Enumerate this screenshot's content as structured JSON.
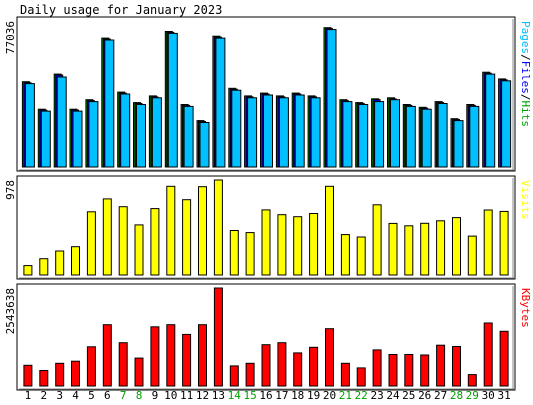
{
  "chart_data": {
    "type": "bar",
    "title": "Daily usage for January 2023",
    "categories": [
      "1",
      "2",
      "3",
      "4",
      "5",
      "6",
      "7",
      "8",
      "9",
      "10",
      "11",
      "12",
      "13",
      "14",
      "15",
      "16",
      "17",
      "18",
      "19",
      "20",
      "21",
      "22",
      "23",
      "24",
      "25",
      "26",
      "27",
      "28",
      "29",
      "30",
      "31"
    ],
    "weekend_days": [
      "7",
      "8",
      "14",
      "15",
      "21",
      "22",
      "28",
      "29"
    ],
    "panels": [
      {
        "name": "hits-files-pages",
        "max_label": "77036",
        "ylim": [
          0,
          77036
        ],
        "right_label_parts": [
          {
            "text": "Pages",
            "color": "#00c0ff"
          },
          {
            "text": "/",
            "color": "#000000"
          },
          {
            "text": "Files",
            "color": "#0000ff"
          },
          {
            "text": "/",
            "color": "#000000"
          },
          {
            "text": "Hits",
            "color": "#00a000"
          }
        ],
        "series": [
          {
            "name": "Hits",
            "color": "#00a000",
            "values": [
              45000,
              30500,
              49000,
              30500,
              35500,
              68000,
              39500,
              34000,
              37500,
              71500,
              33000,
              24500,
              69000,
              41500,
              37500,
              39000,
              37500,
              39000,
              37500,
              73500,
              35500,
              34000,
              36000,
              36500,
              33000,
              31500,
              34500,
              25500,
              33000,
              50000,
              46500
            ]
          },
          {
            "name": "Files",
            "color": "#0000ff",
            "values": [
              44500,
              30000,
              48500,
              30000,
              35000,
              67500,
              39000,
              33500,
              37000,
              71000,
              32500,
              24000,
              68500,
              41000,
              37000,
              38500,
              37000,
              38500,
              37000,
              73000,
              35000,
              33500,
              35500,
              36000,
              32500,
              31000,
              34000,
              25000,
              32500,
              49500,
              46000
            ]
          },
          {
            "name": "Pages",
            "color": "#00c0ff",
            "values": [
              44000,
              29500,
              47500,
              29500,
              34500,
              67000,
              38500,
              33000,
              36500,
              70500,
              32000,
              23500,
              68000,
              40500,
              36500,
              38000,
              36500,
              38000,
              36500,
              72500,
              34500,
              33000,
              34500,
              35500,
              32000,
              30500,
              33500,
              24500,
              32000,
              49000,
              45500
            ]
          }
        ]
      },
      {
        "name": "visits",
        "max_label": "978",
        "ylim": [
          0,
          978
        ],
        "right_label_parts": [
          {
            "text": "Visits",
            "color": "#ffff00"
          }
        ],
        "series": [
          {
            "name": "Visits",
            "color": "#ffff00",
            "values": [
              97,
              168,
              247,
              291,
              651,
              783,
              703,
              516,
              684,
              913,
              775,
              909,
              978,
              458,
              436,
              670,
              621,
              600,
              633,
              913,
              416,
              391,
              723,
              531,
              507,
              532,
              558,
              591,
              400,
              669,
              655
            ]
          }
        ]
      },
      {
        "name": "kbytes",
        "max_label": "2543638",
        "ylim": [
          0,
          2543638
        ],
        "right_label_parts": [
          {
            "text": "KBytes",
            "color": "#ff0000"
          }
        ],
        "series": [
          {
            "name": "KBytes",
            "color": "#ff0000",
            "values": [
              536000,
              402000,
              590000,
              643000,
              1018000,
              1590000,
              1125000,
              724000,
              1536000,
              1590000,
              1339000,
              1590000,
              2543638,
              523000,
              590000,
              1071000,
              1125000,
              858000,
              1004000,
              1487000,
              590000,
              469000,
              938000,
              818000,
              818000,
              804000,
              1058000,
              1025000,
              295000,
              1634000,
              1420000
            ]
          }
        ]
      }
    ]
  }
}
